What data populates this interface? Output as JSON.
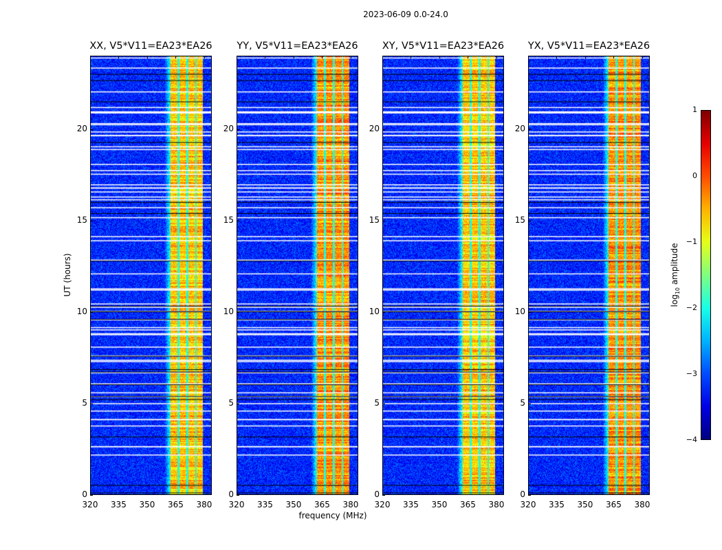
{
  "suptitle": "2023-06-09 0.0-24.0",
  "chart_data": {
    "type": "heatmap",
    "panels": [
      {
        "title": "XX, V5*V11=EA23*EA26"
      },
      {
        "title": "YY, V5*V11=EA23*EA26"
      },
      {
        "title": "XY, V5*V11=EA23*EA26"
      },
      {
        "title": "YX, V5*V11=EA23*EA26"
      }
    ],
    "xlabel": "frequency (MHz)",
    "ylabel": "UT (hours)",
    "xlim": [
      320,
      384
    ],
    "ylim": [
      0,
      24
    ],
    "xticks": [
      "320",
      "335",
      "350",
      "365",
      "380"
    ],
    "xtick_values": [
      320,
      335,
      350,
      365,
      380
    ],
    "yticks": [
      "0",
      "5",
      "10",
      "15",
      "20"
    ],
    "ytick_values": [
      0,
      5,
      10,
      15,
      20
    ],
    "background_level": -3.2,
    "band_mhz": [
      362,
      379
    ],
    "band_level": -0.6,
    "colorbar": {
      "label_prefix": "log",
      "label_sub": "10",
      "label_suffix": " amplitude",
      "colormap": "jet",
      "range": [
        -4,
        1
      ],
      "ticks": [
        "1",
        "0",
        "−1",
        "−2",
        "−3",
        "−4"
      ],
      "tick_values": [
        1,
        0,
        -1,
        -2,
        -3,
        -4
      ]
    }
  }
}
